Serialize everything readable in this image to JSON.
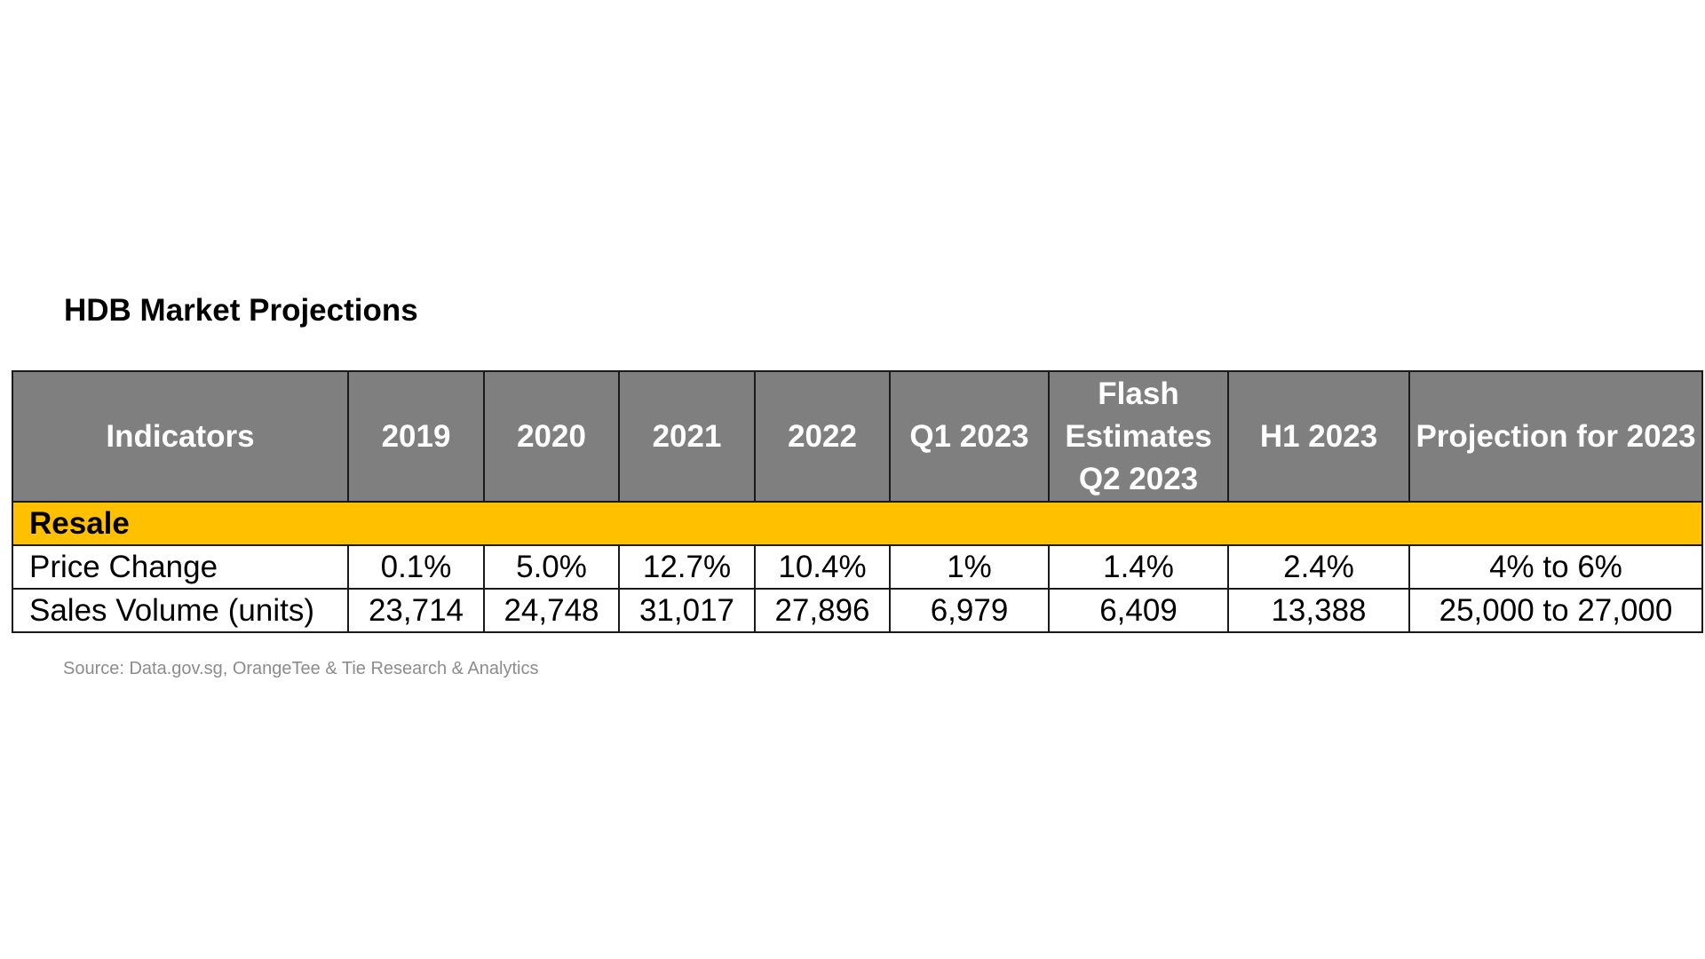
{
  "title": "HDB Market Projections",
  "source": "Source: Data.gov.sg, OrangeTee & Tie Research & Analytics",
  "colors": {
    "header_bg": "#7f7f7f",
    "header_text": "#ffffff",
    "section_bg": "#ffc000",
    "border": "#1a1a1a",
    "source_text": "#8c8c8c"
  },
  "chart_data": {
    "type": "table",
    "title": "HDB Market Projections",
    "columns": [
      "Indicators",
      "2019",
      "2020",
      "2021",
      "2022",
      "Q1 2023",
      "Flash Estimates Q2 2023",
      "H1 2023",
      "Projection for 2023"
    ],
    "sections": [
      {
        "name": "Resale",
        "rows": [
          {
            "indicator": "Price Change",
            "cells": [
              "0.1%",
              "5.0%",
              "12.7%",
              "10.4%",
              "1%",
              "1.4%",
              "2.4%",
              "4% to 6%"
            ]
          },
          {
            "indicator": "Sales Volume (units)",
            "cells": [
              "23,714",
              "24,748",
              "31,017",
              "27,896",
              "6,979",
              "6,409",
              "13,388",
              "25,000 to 27,000"
            ]
          }
        ]
      }
    ]
  }
}
